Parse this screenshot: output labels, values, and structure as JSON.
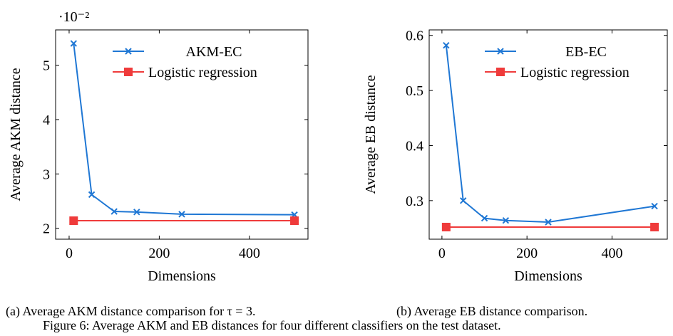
{
  "figure_caption": "Figure 6: Average AKM and EB distances for four different classifiers on the test dataset.",
  "colors": {
    "series1": "#1f77d4",
    "series2": "#ef3b3b",
    "grid": "#000000"
  },
  "chart_data": [
    {
      "type": "line",
      "caption": "(a) Average AKM distance comparison for τ = 3.",
      "xlabel": "Dimensions",
      "ylabel": "Average AKM distance",
      "y_multiplier_label": "·10⁻²",
      "xlim": [
        -30,
        530
      ],
      "ylim": [
        1.8,
        5.65
      ],
      "xticks": [
        0,
        200,
        400
      ],
      "xtick_labels": [
        "0",
        "200",
        "400"
      ],
      "yticks": [
        2,
        3,
        4,
        5
      ],
      "ytick_labels": [
        "2",
        "3",
        "4",
        "5"
      ],
      "legend_position": "top-right",
      "series": [
        {
          "name": "AKM-EC",
          "marker": "x",
          "x": [
            10,
            50,
            100,
            150,
            250,
            500
          ],
          "y": [
            5.4,
            2.62,
            2.31,
            2.3,
            2.26,
            2.25
          ]
        },
        {
          "name": "Logistic regression",
          "marker": "square",
          "x": [
            10,
            500
          ],
          "y": [
            2.14,
            2.14
          ]
        }
      ]
    },
    {
      "type": "line",
      "caption": "(b) Average EB distance comparison.",
      "xlabel": "Dimensions",
      "ylabel": "Average EB distance",
      "xlim": [
        -30,
        530
      ],
      "ylim": [
        0.23,
        0.61
      ],
      "xticks": [
        0,
        200,
        400
      ],
      "xtick_labels": [
        "0",
        "200",
        "400"
      ],
      "yticks": [
        0.3,
        0.4,
        0.5,
        0.6
      ],
      "ytick_labels": [
        "0.3",
        "0.4",
        "0.5",
        "0.6"
      ],
      "legend_position": "top-right",
      "series": [
        {
          "name": "EB-EC",
          "marker": "x",
          "x": [
            10,
            50,
            100,
            150,
            250,
            500
          ],
          "y": [
            0.582,
            0.3,
            0.268,
            0.264,
            0.261,
            0.29
          ]
        },
        {
          "name": "Logistic regression",
          "marker": "square",
          "x": [
            10,
            500
          ],
          "y": [
            0.252,
            0.252
          ]
        }
      ]
    }
  ]
}
